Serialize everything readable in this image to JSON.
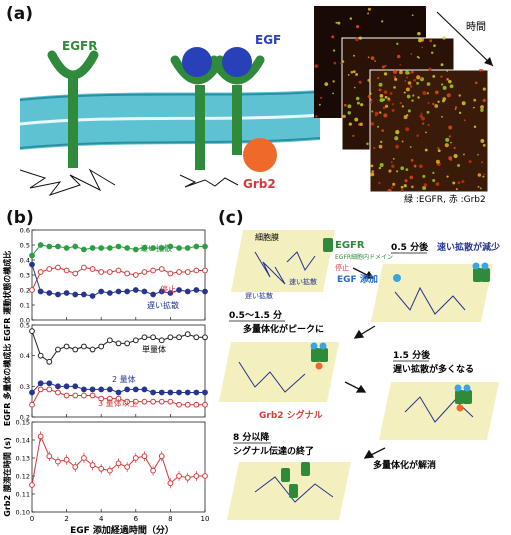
{
  "panel_a": {
    "label": "(a)",
    "egfr_label": "EGFR",
    "egf_label": "EGF",
    "grb2_label": "Grb2",
    "time_label": "時間",
    "image_caption": "緑 :EGFR, 赤 :Grb2"
  },
  "panel_b": {
    "label": "(b)",
    "xlabel": "EGF 添加経過時間（分）",
    "plot1": {
      "ylabel": "EGFR 運動状態の構成比",
      "fast_label": "速い拡散",
      "stop_label": "停止",
      "slow_label": "遅い拡散"
    },
    "plot2": {
      "ylabel": "EGFR 多量体の構成比",
      "monomer_label": "単量体",
      "dimer_label": "2 量体",
      "trimer_label": "3 量体以上"
    },
    "plot3": {
      "ylabel": "Grb2 膜滞在時間 (s)"
    }
  },
  "panel_c": {
    "label": "(c)",
    "membrane_label": "細胞膜",
    "egfr_label": "EGFR",
    "domain_label": "EGFR細胞内ドメイン",
    "stop_label": "停止",
    "fast_label": "速い拡散",
    "slow_label": "遅い拡散",
    "egf_add_label": "EGF 添加",
    "step1_time": "0.5 分後",
    "step1_text": "速い拡散が減少",
    "step2_time": "0.5〜1.5 分",
    "step2_text": "多量体化がピークに",
    "step3_time": "1.5 分後",
    "step3_text": "遅い拡散が多くなる",
    "grb2_signal": "Grb2 シグナル",
    "step4_time": "8 分以降",
    "step4_text": "シグナル伝達の終了",
    "dissolve_text": "多量体化が解消"
  },
  "chart_data": [
    {
      "type": "line",
      "ylabel": "EGFR 運動状態の構成比",
      "xlabel": "",
      "xlim": [
        0,
        10
      ],
      "ylim": [
        0,
        0.6
      ],
      "x": [
        0,
        0.5,
        1,
        1.5,
        2,
        2.5,
        3,
        3.5,
        4,
        4.5,
        5,
        5.5,
        6,
        6.5,
        7,
        7.5,
        8,
        8.5,
        9,
        9.5,
        10
      ],
      "series": [
        {
          "name": "速い拡散",
          "color": "#2e9e44",
          "values": [
            0.43,
            0.5,
            0.49,
            0.49,
            0.48,
            0.49,
            0.47,
            0.48,
            0.48,
            0.48,
            0.49,
            0.48,
            0.47,
            0.48,
            0.48,
            0.48,
            0.49,
            0.48,
            0.48,
            0.49,
            0.49
          ]
        },
        {
          "name": "停止",
          "color": "#d23b3b",
          "values": [
            0.2,
            0.32,
            0.34,
            0.35,
            0.33,
            0.31,
            0.35,
            0.34,
            0.32,
            0.32,
            0.33,
            0.31,
            0.3,
            0.32,
            0.33,
            0.34,
            0.31,
            0.32,
            0.32,
            0.33,
            0.33
          ]
        },
        {
          "name": "遅い拡散",
          "color": "#27358f",
          "values": [
            0.37,
            0.19,
            0.18,
            0.17,
            0.18,
            0.17,
            0.17,
            0.16,
            0.19,
            0.18,
            0.19,
            0.19,
            0.2,
            0.19,
            0.17,
            0.19,
            0.18,
            0.2,
            0.19,
            0.2,
            0.19
          ]
        }
      ]
    },
    {
      "type": "line",
      "ylabel": "EGFR 多量体の構成比",
      "xlabel": "",
      "xlim": [
        0,
        10
      ],
      "ylim": [
        0.2,
        0.5
      ],
      "x": [
        0,
        0.5,
        1,
        1.5,
        2,
        2.5,
        3,
        3.5,
        4,
        4.5,
        5,
        5.5,
        6,
        6.5,
        7,
        7.5,
        8,
        8.5,
        9,
        9.5,
        10
      ],
      "series": [
        {
          "name": "単量体",
          "color": "#222222",
          "values": [
            0.48,
            0.4,
            0.38,
            0.42,
            0.43,
            0.42,
            0.43,
            0.42,
            0.43,
            0.45,
            0.44,
            0.44,
            0.45,
            0.46,
            0.46,
            0.45,
            0.46,
            0.46,
            0.47,
            0.46,
            0.46
          ]
        },
        {
          "name": "2 量体",
          "color": "#27358f",
          "values": [
            0.28,
            0.31,
            0.31,
            0.3,
            0.3,
            0.3,
            0.29,
            0.29,
            0.29,
            0.29,
            0.28,
            0.29,
            0.29,
            0.29,
            0.28,
            0.28,
            0.28,
            0.28,
            0.28,
            0.28,
            0.28
          ]
        },
        {
          "name": "3 量体以上",
          "color": "#d23b3b",
          "values": [
            0.24,
            0.29,
            0.29,
            0.28,
            0.27,
            0.27,
            0.27,
            0.27,
            0.26,
            0.26,
            0.26,
            0.25,
            0.25,
            0.25,
            0.25,
            0.25,
            0.25,
            0.24,
            0.24,
            0.24,
            0.24
          ]
        }
      ]
    },
    {
      "type": "line",
      "ylabel": "Grb2 膜滞在時間 (s)",
      "xlabel": "EGF 添加経過時間（分）",
      "xlim": [
        0,
        10
      ],
      "ylim": [
        0.1,
        0.15
      ],
      "xticks": [
        0,
        2,
        4,
        6,
        8,
        10
      ],
      "yticks": [
        0.1,
        0.11,
        0.12,
        0.13,
        0.14,
        0.15
      ],
      "x": [
        0,
        0.5,
        1,
        1.5,
        2,
        2.5,
        3,
        3.5,
        4,
        4.5,
        5,
        5.5,
        6,
        6.5,
        7,
        7.5,
        8,
        8.5,
        9,
        9.5,
        10
      ],
      "series": [
        {
          "name": "",
          "color": "#d23b3b",
          "values": [
            0.115,
            0.142,
            0.131,
            0.128,
            0.129,
            0.125,
            0.13,
            0.126,
            0.124,
            0.123,
            0.127,
            0.125,
            0.13,
            0.131,
            0.123,
            0.131,
            0.116,
            0.12,
            0.119,
            0.12,
            0.12
          ]
        }
      ]
    }
  ]
}
